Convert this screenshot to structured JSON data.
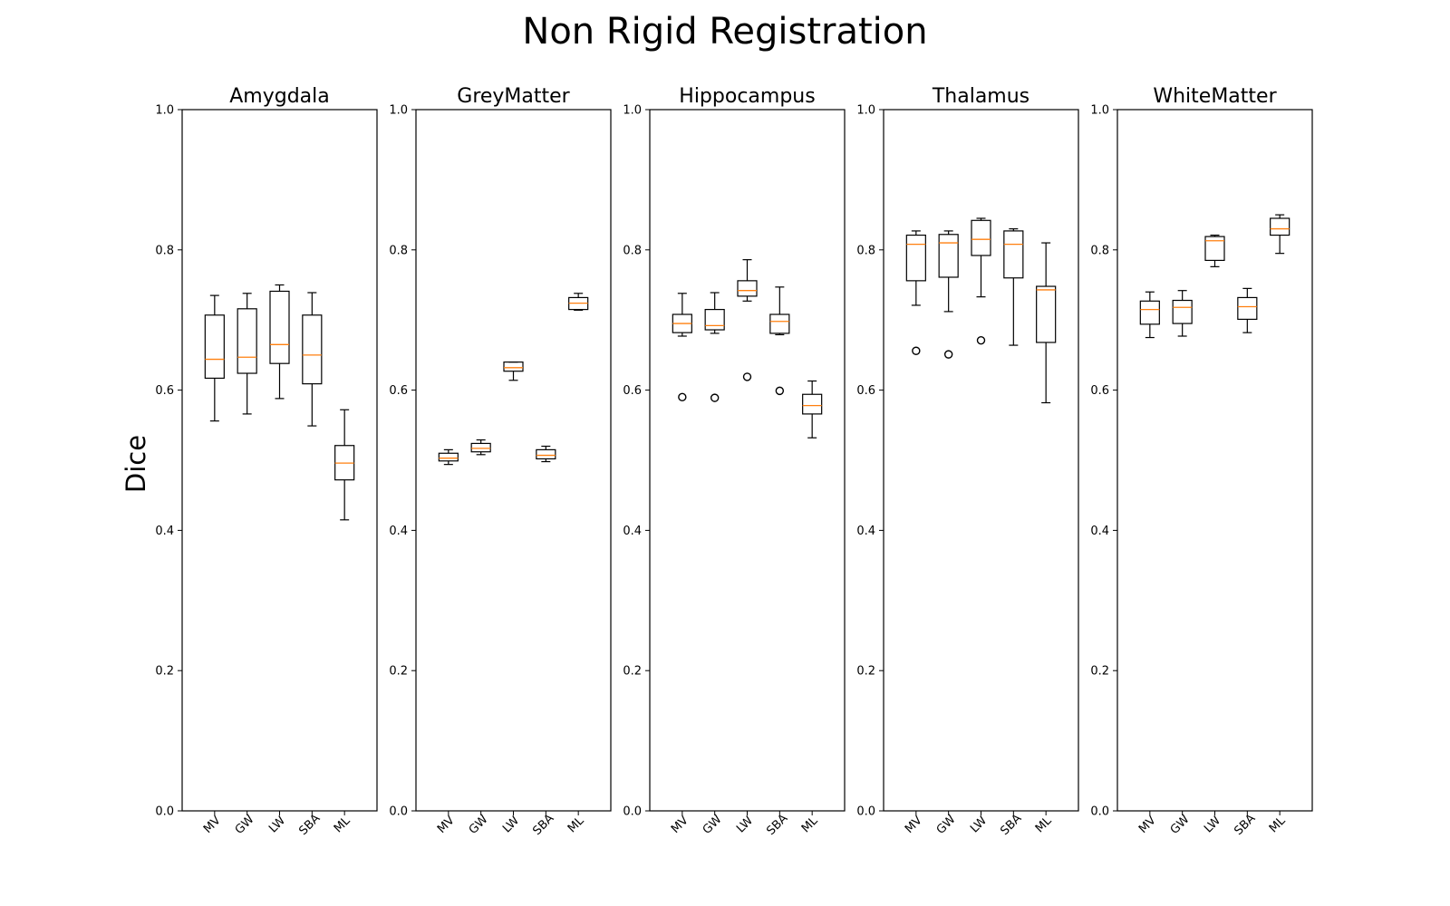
{
  "figure": {
    "title": "Non Rigid Registration",
    "ylabel": "Dice"
  },
  "chart_data": {
    "type": "box",
    "title": "Non Rigid Registration",
    "ylabel": "Dice",
    "ylim": [
      0.0,
      1.0
    ],
    "yticks": [
      "0.0",
      "0.2",
      "0.4",
      "0.6",
      "0.8",
      "1.0"
    ],
    "categories": [
      "MV",
      "GW",
      "LW",
      "SBA",
      "ML"
    ],
    "colors": {
      "box": "#000000",
      "median": "#ff7f0e",
      "outlier": "#000000"
    },
    "panels": [
      {
        "name": "Amygdala",
        "boxes": [
          {
            "category": "MV",
            "whisker_low": 0.556,
            "q1": 0.617,
            "median": 0.644,
            "q3": 0.707,
            "whisker_high": 0.735,
            "outliers": []
          },
          {
            "category": "GW",
            "whisker_low": 0.566,
            "q1": 0.624,
            "median": 0.647,
            "q3": 0.716,
            "whisker_high": 0.738,
            "outliers": []
          },
          {
            "category": "LW",
            "whisker_low": 0.588,
            "q1": 0.638,
            "median": 0.665,
            "q3": 0.741,
            "whisker_high": 0.75,
            "outliers": []
          },
          {
            "category": "SBA",
            "whisker_low": 0.549,
            "q1": 0.609,
            "median": 0.65,
            "q3": 0.707,
            "whisker_high": 0.739,
            "outliers": []
          },
          {
            "category": "ML",
            "whisker_low": 0.415,
            "q1": 0.472,
            "median": 0.496,
            "q3": 0.521,
            "whisker_high": 0.572,
            "outliers": []
          }
        ]
      },
      {
        "name": "GreyMatter",
        "boxes": [
          {
            "category": "MV",
            "whisker_low": 0.494,
            "q1": 0.499,
            "median": 0.503,
            "q3": 0.51,
            "whisker_high": 0.515,
            "outliers": []
          },
          {
            "category": "GW",
            "whisker_low": 0.508,
            "q1": 0.512,
            "median": 0.517,
            "q3": 0.524,
            "whisker_high": 0.529,
            "outliers": []
          },
          {
            "category": "LW",
            "whisker_low": 0.614,
            "q1": 0.627,
            "median": 0.632,
            "q3": 0.64,
            "whisker_high": 0.64,
            "outliers": []
          },
          {
            "category": "SBA",
            "whisker_low": 0.498,
            "q1": 0.502,
            "median": 0.507,
            "q3": 0.515,
            "whisker_high": 0.52,
            "outliers": []
          },
          {
            "category": "ML",
            "whisker_low": 0.714,
            "q1": 0.715,
            "median": 0.724,
            "q3": 0.732,
            "whisker_high": 0.738,
            "outliers": []
          }
        ]
      },
      {
        "name": "Hippocampus",
        "boxes": [
          {
            "category": "MV",
            "whisker_low": 0.677,
            "q1": 0.682,
            "median": 0.695,
            "q3": 0.708,
            "whisker_high": 0.738,
            "outliers": [
              0.59
            ]
          },
          {
            "category": "GW",
            "whisker_low": 0.681,
            "q1": 0.686,
            "median": 0.692,
            "q3": 0.715,
            "whisker_high": 0.739,
            "outliers": [
              0.589
            ]
          },
          {
            "category": "LW",
            "whisker_low": 0.727,
            "q1": 0.734,
            "median": 0.742,
            "q3": 0.756,
            "whisker_high": 0.786,
            "outliers": [
              0.619
            ]
          },
          {
            "category": "SBA",
            "whisker_low": 0.679,
            "q1": 0.681,
            "median": 0.698,
            "q3": 0.708,
            "whisker_high": 0.747,
            "outliers": [
              0.599
            ]
          },
          {
            "category": "ML",
            "whisker_low": 0.532,
            "q1": 0.566,
            "median": 0.578,
            "q3": 0.594,
            "whisker_high": 0.613,
            "outliers": []
          }
        ]
      },
      {
        "name": "Thalamus",
        "boxes": [
          {
            "category": "MV",
            "whisker_low": 0.721,
            "q1": 0.756,
            "median": 0.808,
            "q3": 0.821,
            "whisker_high": 0.827,
            "outliers": [
              0.656
            ]
          },
          {
            "category": "GW",
            "whisker_low": 0.712,
            "q1": 0.761,
            "median": 0.81,
            "q3": 0.822,
            "whisker_high": 0.827,
            "outliers": [
              0.651
            ]
          },
          {
            "category": "LW",
            "whisker_low": 0.733,
            "q1": 0.792,
            "median": 0.815,
            "q3": 0.842,
            "whisker_high": 0.845,
            "outliers": [
              0.671
            ]
          },
          {
            "category": "SBA",
            "whisker_low": 0.664,
            "q1": 0.76,
            "median": 0.808,
            "q3": 0.827,
            "whisker_high": 0.83,
            "outliers": []
          },
          {
            "category": "ML",
            "whisker_low": 0.582,
            "q1": 0.668,
            "median": 0.743,
            "q3": 0.748,
            "whisker_high": 0.81,
            "outliers": []
          }
        ]
      },
      {
        "name": "WhiteMatter",
        "boxes": [
          {
            "category": "MV",
            "whisker_low": 0.675,
            "q1": 0.694,
            "median": 0.715,
            "q3": 0.727,
            "whisker_high": 0.74,
            "outliers": []
          },
          {
            "category": "GW",
            "whisker_low": 0.677,
            "q1": 0.695,
            "median": 0.718,
            "q3": 0.728,
            "whisker_high": 0.742,
            "outliers": []
          },
          {
            "category": "LW",
            "whisker_low": 0.776,
            "q1": 0.785,
            "median": 0.813,
            "q3": 0.819,
            "whisker_high": 0.821,
            "outliers": []
          },
          {
            "category": "SBA",
            "whisker_low": 0.682,
            "q1": 0.701,
            "median": 0.719,
            "q3": 0.732,
            "whisker_high": 0.745,
            "outliers": []
          },
          {
            "category": "ML",
            "whisker_low": 0.795,
            "q1": 0.821,
            "median": 0.83,
            "q3": 0.845,
            "whisker_high": 0.85,
            "outliers": []
          }
        ]
      }
    ]
  }
}
